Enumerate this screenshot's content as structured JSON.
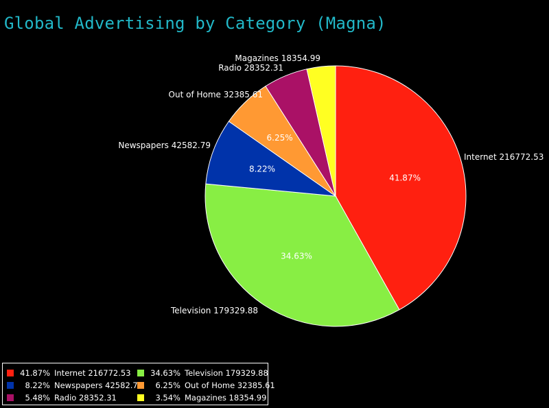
{
  "chart_data": {
    "type": "pie",
    "title": "Global Advertising by Category (Magna)",
    "legend_position": "bottom-left",
    "slices": [
      {
        "name": "Internet",
        "value": 216772.53,
        "percent_label": "41.87%",
        "outer_label": "Internet 216772.53",
        "legend_text": "Internet 216772.53",
        "color": "#FF2010"
      },
      {
        "name": "Television",
        "value": 179329.88,
        "percent_label": "34.63%",
        "outer_label": "Television 179329.88",
        "legend_text": "Television 179329.88",
        "color": "#88EE44"
      },
      {
        "name": "Newspapers",
        "value": 42582.79,
        "percent_label": "8.22%",
        "outer_label": "Newspapers 42582.79",
        "legend_text": "Newspapers 42582.79",
        "color": "#0033AA"
      },
      {
        "name": "Out of Home",
        "value": 32385.61,
        "percent_label": "6.25%",
        "outer_label": "Out of Home 32385.61",
        "legend_text": "Out of Home 32385.61",
        "color": "#FF9933"
      },
      {
        "name": "Radio",
        "value": 28352.31,
        "percent_label": "5.48%",
        "outer_label": "Radio 28352.31",
        "legend_text": "Radio 28352.31",
        "color": "#AA1166"
      },
      {
        "name": "Magazines",
        "value": 18354.99,
        "percent_label": "3.54%",
        "outer_label": "Magazines 18354.99",
        "legend_text": "Magazines 18354.99",
        "color": "#FFFF22"
      }
    ],
    "legend_order": [
      "Internet",
      "Television",
      "Newspapers",
      "Out of Home",
      "Radio",
      "Magazines"
    ]
  }
}
